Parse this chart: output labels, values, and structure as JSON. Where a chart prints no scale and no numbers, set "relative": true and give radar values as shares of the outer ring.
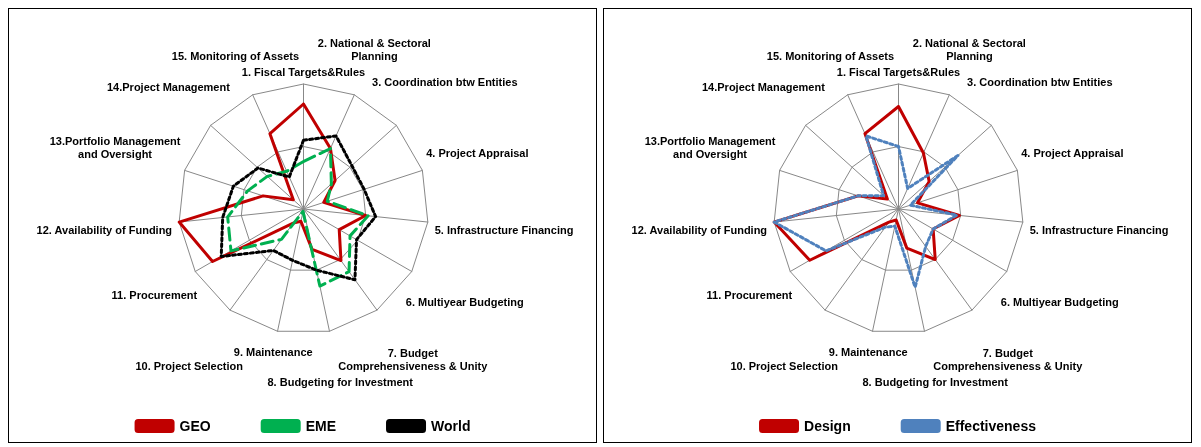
{
  "chart_data": [
    {
      "type": "radar",
      "relative": true,
      "categories": [
        "1. Fiscal Targets&Rules",
        "2. National & Sectoral\nPlanning",
        "3. Coordination btw Entities",
        "4. Project Appraisal",
        "5. Infrastructure Financing",
        "6. Multiyear Budgeting",
        "7. Budget\nComprehensiveness & Unity",
        "8. Budgeting for Investment",
        "9. Maintenance",
        "10. Project Selection",
        "11. Procurement",
        "12. Availability of Funding",
        "13.Portfolio Management\nand Oversight",
        "14.Project Management",
        "15. Monitoring of Assets"
      ],
      "series": [
        {
          "name": "GEO",
          "color": "#c00000",
          "line_style": "solid",
          "values": [
            0.84,
            0.53,
            0.34,
            0.17,
            0.5,
            0.33,
            0.51,
            0.33,
            0.1,
            0.14,
            0.84,
            1,
            0.34,
            0.11,
            0.66
          ]
        },
        {
          "name": "EME",
          "color": "#00b050",
          "line_style": "dashed",
          "values": [
            0.38,
            0.53,
            0.3,
            0.2,
            0.52,
            0.43,
            0.62,
            0.63,
            0.02,
            0.3,
            0.67,
            0.61,
            0.47,
            0.39,
            0.33
          ]
        },
        {
          "name": "World",
          "color": "#000000",
          "line_style": "dotted",
          "values": [
            0.55,
            0.64,
            0.52,
            0.51,
            0.58,
            0.49,
            0.7,
            0.5,
            0.42,
            0.41,
            0.76,
            0.65,
            0.59,
            0.49,
            0.28
          ]
        }
      ],
      "marker": "none",
      "legend": "bottom",
      "grid": true
    },
    {
      "type": "radar",
      "relative": true,
      "categories": [
        "1. Fiscal Targets&Rules",
        "2. National & Sectoral\nPlanning",
        "3. Coordination btw Entities",
        "4. Project Appraisal",
        "5. Infrastructure Financing",
        "6. Multiyear Budgeting",
        "7. Budget\nComprehensiveness & Unity",
        "8. Budgeting for Investment",
        "9. Maintenance",
        "10. Project Selection",
        "11. Procurement",
        "12. Availability of Funding",
        "13.Portfolio Management\nand Oversight",
        "14.Project Management",
        "15. Monitoring of Assets"
      ],
      "series": [
        {
          "name": "Design",
          "color": "#c00000",
          "line_style": "solid",
          "values": [
            0.82,
            0.49,
            0.33,
            0.16,
            0.49,
            0.32,
            0.5,
            0.32,
            0.09,
            0.13,
            0.82,
            1,
            0.34,
            0.12,
            0.66
          ]
        },
        {
          "name": "Effectiveness",
          "color": "#4f81bd",
          "line_style": "dotted",
          "values": [
            0.5,
            0.18,
            0.64,
            0.1,
            0.47,
            0.32,
            0.37,
            0.64,
            0.14,
            0.18,
            0.67,
            1,
            0.34,
            0.16,
            0.64
          ]
        }
      ],
      "marker": "none",
      "legend": "bottom",
      "grid": true
    }
  ]
}
